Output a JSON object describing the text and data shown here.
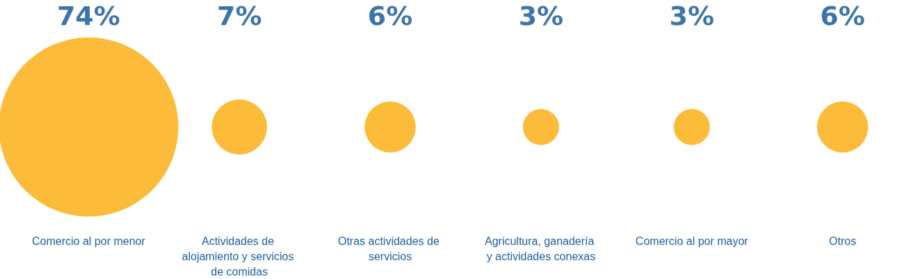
{
  "chart_data": {
    "type": "other",
    "categories": [
      "Comercio al por menor",
      "Actividades de alojamiento y servicios de comidas",
      "Otras actividades de servicios",
      "Agricultura, ganadería y actividades conexas",
      "Comercio al por mayor",
      "Otros"
    ],
    "values": [
      74,
      7,
      6,
      3,
      3,
      6
    ],
    "value_labels": [
      "74%",
      "7%",
      "6%",
      "3%",
      "3%",
      "6%"
    ],
    "color": "#fcbc3a"
  }
}
